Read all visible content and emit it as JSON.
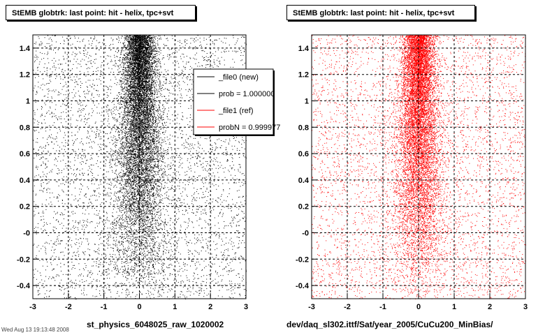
{
  "page": {
    "footer_stamp": "Wed Aug 13 19:13:48 2008"
  },
  "chart_data": [
    {
      "type": "scatter",
      "title": "StEMB globtrk: last point: hit - helix, tpc+svt",
      "xlabel": "st_physics_6048025_raw_1020002",
      "ylabel": "",
      "xlim": [
        -3,
        3
      ],
      "ylim": [
        -0.5,
        1.5
      ],
      "x_ticks": [
        "-3",
        "-2",
        "-1",
        "0",
        "1",
        "2",
        "3"
      ],
      "y_ticks": [
        "-0.4",
        "-0.2",
        "-0",
        "0.2",
        "0.4",
        "0.6",
        "0.8",
        "1",
        "1.2",
        "1.4"
      ],
      "grid": true,
      "grid_style": "dashed",
      "point_color": "#000000",
      "distribution": {
        "description_of_density": "dense vertical band near x = 0 spanning full y-range, densest for y > 0.5; sparse uniform background over x in [-3, 3]",
        "core_x_center": 0.0,
        "core_x_sigma_lower": 0.45,
        "core_x_sigma_upper": 0.2
      },
      "legend": {
        "position": "top-right",
        "entries": [
          {
            "label": "_file0 (new)",
            "color": "#000000"
          },
          {
            "label": "prob = 1.000000",
            "color": "#000000"
          },
          {
            "label": "_file1 (ref)",
            "color": "#ff0000"
          },
          {
            "label": "probN = 0.999977",
            "color": "#ff0000"
          }
        ]
      }
    },
    {
      "type": "scatter",
      "title": "StEMB globtrk: last point: hit - helix, tpc+svt",
      "xlabel": "dev/daq_sl302.ittf/Sat/year_2005/CuCu200_MinBias/",
      "ylabel": "",
      "xlim": [
        -3,
        3
      ],
      "ylim": [
        -0.5,
        1.5
      ],
      "x_ticks": [
        "-3",
        "-2",
        "-1",
        "0",
        "1",
        "2",
        "3"
      ],
      "y_ticks": [
        "-0.4",
        "-0.2",
        "-0",
        "0.2",
        "0.4",
        "0.6",
        "0.8",
        "1",
        "1.2",
        "1.4"
      ],
      "grid": true,
      "grid_style": "dashed",
      "point_color": "#ff0000",
      "distribution": {
        "description_of_density": "dense vertical band near x = 0 spanning full y-range, densest for y > 0.5; sparse uniform background over x in [-3, 3]",
        "core_x_center": 0.0,
        "core_x_sigma_lower": 0.45,
        "core_x_sigma_upper": 0.2
      }
    }
  ]
}
